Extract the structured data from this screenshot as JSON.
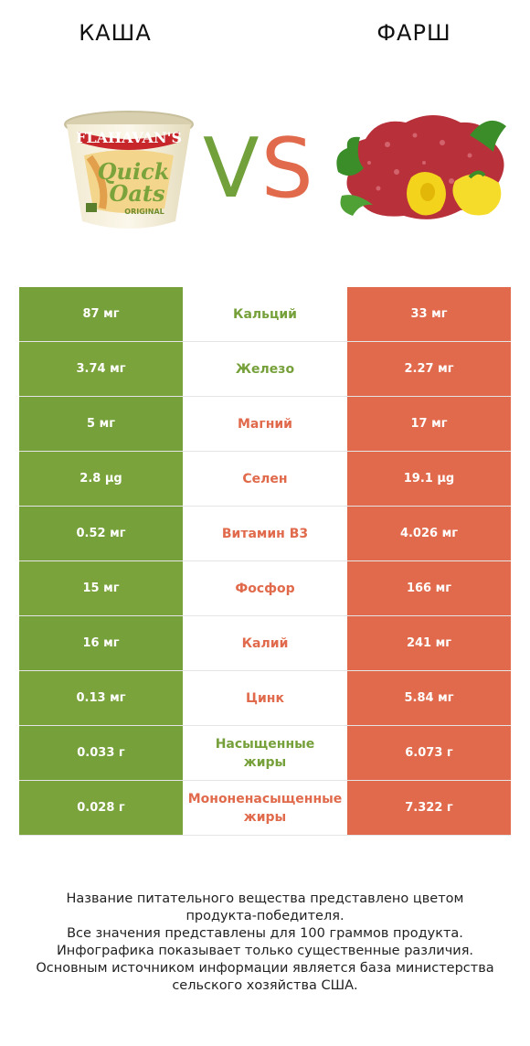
{
  "header": {
    "left_title": "КАША",
    "right_title": "ФАРШ",
    "vs_v": "V",
    "vs_s": "S"
  },
  "colors": {
    "winner_left": "#76a03a",
    "winner_right": "#e06a4b"
  },
  "product_left": {
    "brand": "FLAHAVAN'S",
    "name_line1": "Quick",
    "name_line2": "Oats",
    "variant": "ORIGINAL"
  },
  "rows": [
    {
      "left": "87 мг",
      "nutrient": "Кальций",
      "right": "33 мг",
      "winner": "left"
    },
    {
      "left": "3.74 мг",
      "nutrient": "Железо",
      "right": "2.27 мг",
      "winner": "left"
    },
    {
      "left": "5 мг",
      "nutrient": "Магний",
      "right": "17 мг",
      "winner": "right"
    },
    {
      "left": "2.8 µg",
      "nutrient": "Селен",
      "right": "19.1 µg",
      "winner": "right"
    },
    {
      "left": "0.52 мг",
      "nutrient": "Витамин B3",
      "right": "4.026 мг",
      "winner": "right"
    },
    {
      "left": "15 мг",
      "nutrient": "Фосфор",
      "right": "166 мг",
      "winner": "right"
    },
    {
      "left": "16 мг",
      "nutrient": "Калий",
      "right": "241 мг",
      "winner": "right"
    },
    {
      "left": "0.13 мг",
      "nutrient": "Цинк",
      "right": "5.84 мг",
      "winner": "right"
    },
    {
      "left": "0.033 г",
      "nutrient": "Насыщенные\nжиры",
      "right": "6.073 г",
      "winner": "left"
    },
    {
      "left": "0.028 г",
      "nutrient": "Мононенасыщенные\nжиры",
      "right": "7.322 г",
      "winner": "right"
    }
  ],
  "footnote": {
    "line1": "Название питательного вещества представлено цветом",
    "line2": "продукта-победителя.",
    "line3": "Все значения представлены для 100 граммов продукта.",
    "line4": "Инфографика показывает только существенные различия.",
    "line5": "Основным источником информации является база министерства",
    "line6": "сельского хозяйства США."
  }
}
